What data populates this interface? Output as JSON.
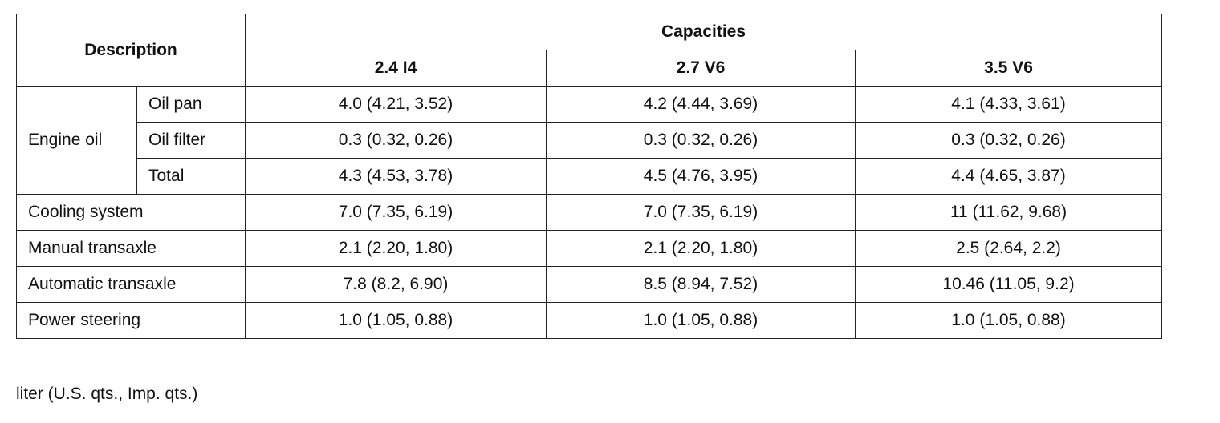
{
  "table": {
    "header": {
      "description": "Description",
      "capacities": "Capacities",
      "columns": [
        "2.4 I4",
        "2.7 V6",
        "3.5 V6"
      ]
    },
    "group": "Engine oil",
    "rows": [
      [
        "Oil pan",
        "4.0 (4.21, 3.52)",
        "4.2 (4.44, 3.69)",
        "4.1 (4.33, 3.61)"
      ],
      [
        "Oil filter",
        "0.3 (0.32, 0.26)",
        "0.3 (0.32, 0.26)",
        "0.3 (0.32, 0.26)"
      ],
      [
        "Total",
        "4.3 (4.53, 3.78)",
        "4.5 (4.76, 3.95)",
        "4.4 (4.65, 3.87)"
      ],
      [
        "Cooling system",
        "7.0 (7.35, 6.19)",
        "7.0 (7.35, 6.19)",
        "11 (11.62, 9.68)"
      ],
      [
        "Manual transaxle",
        "2.1 (2.20, 1.80)",
        "2.1 (2.20, 1.80)",
        "2.5 (2.64, 2.2)"
      ],
      [
        "Automatic transaxle",
        "7.8 (8.2, 6.90)",
        "8.5 (8.94, 7.52)",
        "10.46 (11.05, 9.2)"
      ],
      [
        "Power steering",
        "1.0 (1.05, 0.88)",
        "1.0 (1.05, 0.88)",
        "1.0 (1.05, 0.88)"
      ]
    ]
  },
  "footnote": "liter (U.S. qts., Imp. qts.)"
}
